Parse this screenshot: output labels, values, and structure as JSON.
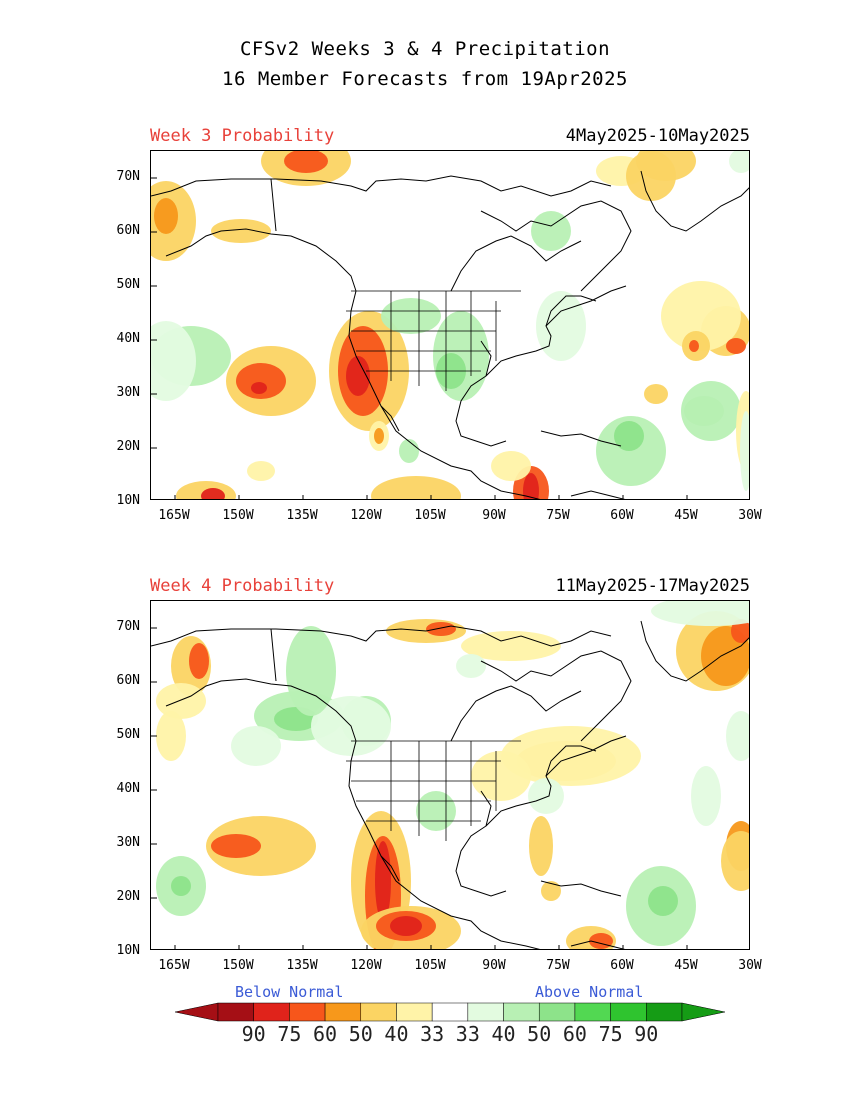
{
  "title_line1": "CFSv2 Weeks 3 & 4 Precipitation",
  "title_line2": "16 Member Forecasts from 19Apr2025",
  "panels": [
    {
      "label": "Week 3 Probability",
      "dates": "4May2025-10May2025"
    },
    {
      "label": "Week 4 Probability",
      "dates": "11May2025-17May2025"
    }
  ],
  "lat_ticks": [
    "70N",
    "60N",
    "50N",
    "40N",
    "30N",
    "20N",
    "10N"
  ],
  "lon_ticks": [
    "165W",
    "150W",
    "135W",
    "120W",
    "105W",
    "90W",
    "75W",
    "60W",
    "45W",
    "30W"
  ],
  "legend": {
    "below_label": "Below Normal",
    "above_label": "Above Normal",
    "values": [
      "90",
      "75",
      "60",
      "50",
      "40",
      "33",
      "33",
      "40",
      "50",
      "60",
      "75",
      "90"
    ],
    "colors": [
      "#a50f15",
      "#e0231b",
      "#f7561b",
      "#f7981b",
      "#fbd463",
      "#fff3a8",
      "#ffffff",
      "#e3fbe0",
      "#b8f0b4",
      "#8de38a",
      "#52d852",
      "#2fc42f",
      "#159c15"
    ],
    "below_arrow_color": "#a50f15",
    "above_arrow_color": "#159c15"
  },
  "map_extent": {
    "lon": [
      -170,
      -30
    ],
    "lat": [
      10,
      75
    ]
  },
  "color_categories": {
    "below_33": "#fff3a8",
    "below_40": "#fbd463",
    "below_50": "#f7981b",
    "below_60": "#f7561b",
    "below_75": "#e0231b",
    "above_33": "#e3fbe0",
    "above_40": "#b8f0b4",
    "above_50": "#8de38a",
    "above_60": "#52d852"
  }
}
